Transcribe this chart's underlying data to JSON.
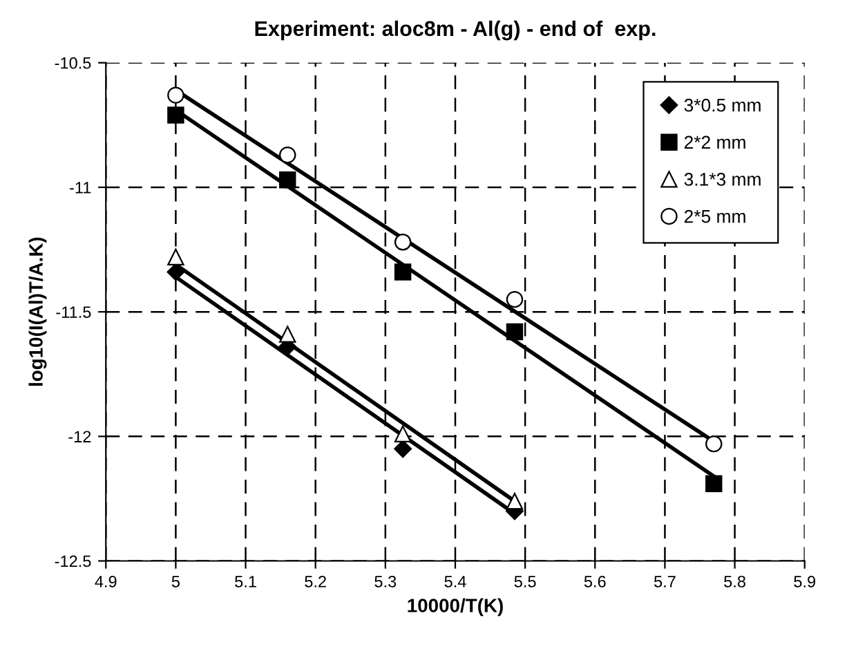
{
  "chart_data": {
    "type": "scatter",
    "title": "Experiment: aloc8m - Al(g) - end of  exp.",
    "xlabel": "10000/T(K)",
    "ylabel": "log10(I(Al)T/A.K)",
    "xlim": [
      4.9,
      5.9
    ],
    "xticks": [
      4.9,
      5,
      5.1,
      5.2,
      5.3,
      5.4,
      5.5,
      5.6,
      5.7,
      5.8,
      5.9
    ],
    "ylim": [
      -12.5,
      -10.5
    ],
    "yticks": [
      -12.5,
      -12,
      -11.5,
      -11,
      -10.5
    ],
    "grid": true,
    "legend": "top right",
    "series": [
      {
        "name": "3*0.5 mm",
        "marker": "diamond",
        "color": "#000000",
        "x": [
          5.0,
          5.16,
          5.325,
          5.485
        ],
        "values": [
          -11.34,
          -11.64,
          -12.05,
          -12.3
        ]
      },
      {
        "name": "2*2 mm",
        "marker": "square",
        "color": "#000000",
        "x": [
          5.0,
          5.16,
          5.325,
          5.485,
          5.77
        ],
        "values": [
          -10.71,
          -10.97,
          -11.34,
          -11.58,
          -12.19
        ]
      },
      {
        "name": "3.1*3 mm",
        "marker": "triangle",
        "color": "#ffffff",
        "x": [
          5.0,
          5.16,
          5.325,
          5.485
        ],
        "values": [
          -11.28,
          -11.59,
          -11.99,
          -12.26
        ]
      },
      {
        "name": "2*5 mm",
        "marker": "circle",
        "color": "#ffffff",
        "x": [
          5.0,
          5.16,
          5.325,
          5.485,
          5.77
        ],
        "values": [
          -10.63,
          -10.87,
          -11.22,
          -11.45,
          -12.03
        ]
      },
      {
        "type": "line",
        "marker": "none",
        "color": "#000000",
        "x": [
          5.0,
          5.485
        ],
        "values": [
          -11.36,
          -12.31
        ]
      },
      {
        "type": "line",
        "marker": "none",
        "color": "#000000",
        "x": [
          5.0,
          5.77
        ],
        "values": [
          -10.69,
          -12.16
        ]
      },
      {
        "type": "line",
        "marker": "none",
        "color": "#000000",
        "x": [
          5.0,
          5.485
        ],
        "values": [
          -11.31,
          -12.26
        ]
      },
      {
        "type": "line",
        "marker": "none",
        "color": "#000000",
        "x": [
          5.0,
          5.77
        ],
        "values": [
          -10.61,
          -12.02
        ]
      }
    ]
  }
}
